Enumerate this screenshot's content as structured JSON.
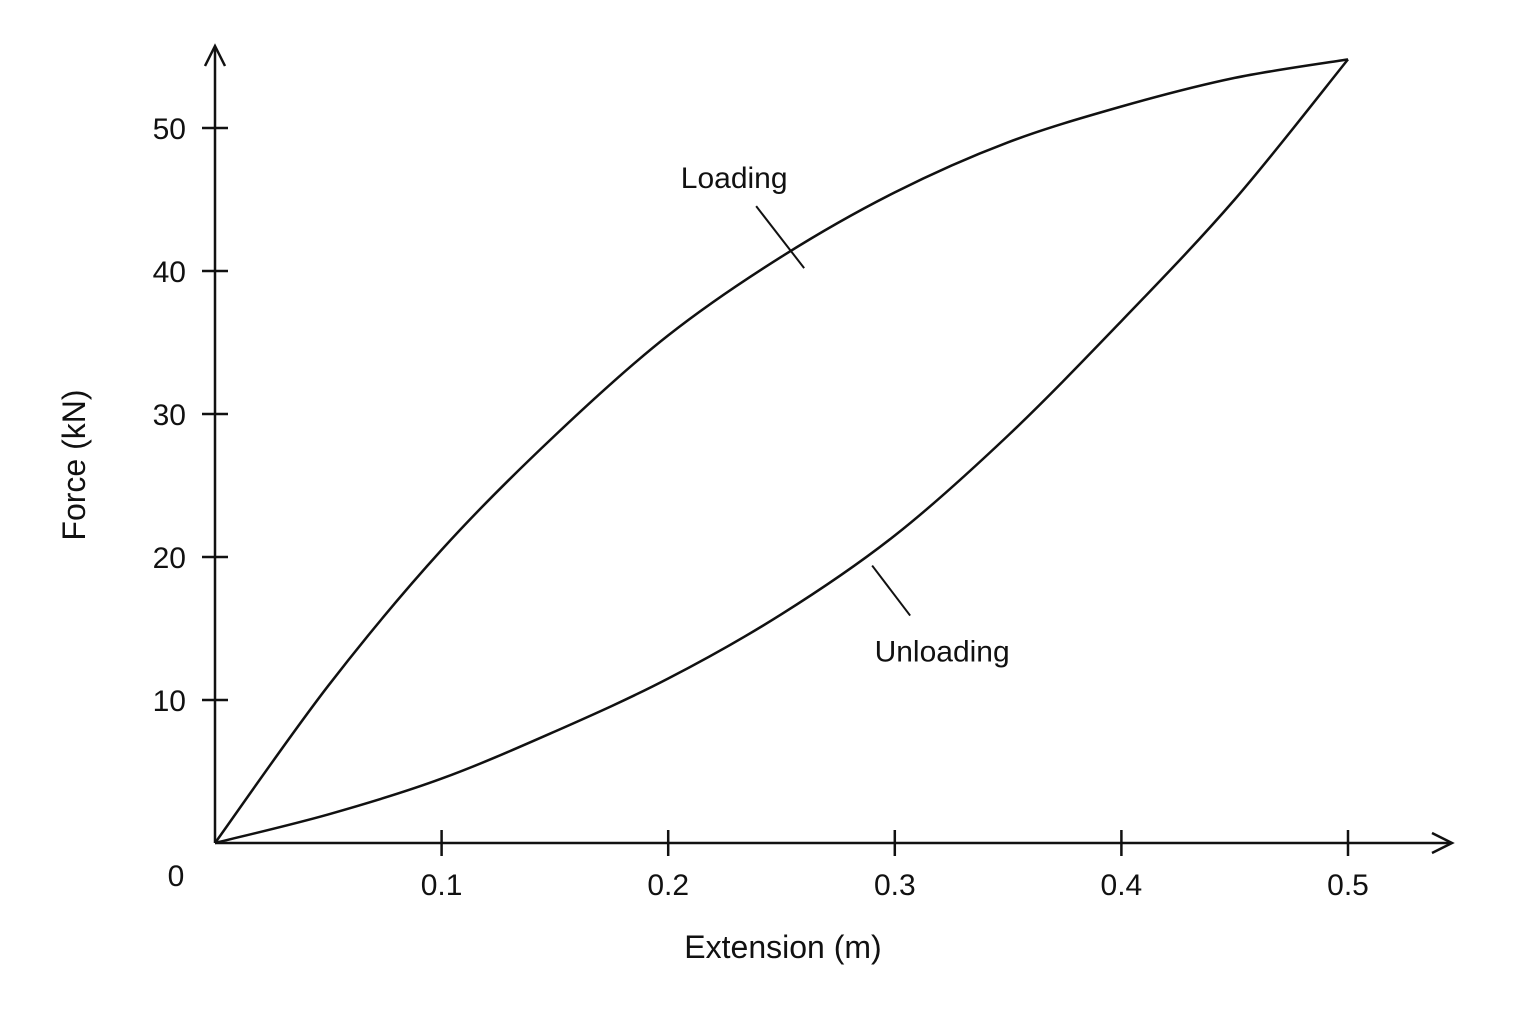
{
  "chart_data": {
    "type": "line",
    "title": "",
    "xlabel": "Extension (m)",
    "ylabel": "Force (kN)",
    "origin_label": "0",
    "xlim": [
      0,
      0.5
    ],
    "ylim": [
      0,
      50
    ],
    "x_ticks": [
      {
        "value": 0.1,
        "label": "0.1"
      },
      {
        "value": 0.2,
        "label": "0.2"
      },
      {
        "value": 0.3,
        "label": "0.3"
      },
      {
        "value": 0.4,
        "label": "0.4"
      },
      {
        "value": 0.5,
        "label": "0.5"
      }
    ],
    "y_ticks": [
      {
        "value": 10,
        "label": "10"
      },
      {
        "value": 20,
        "label": "20"
      },
      {
        "value": 30,
        "label": "30"
      },
      {
        "value": 40,
        "label": "40"
      },
      {
        "value": 50,
        "label": "50"
      }
    ],
    "grid": false,
    "legend": "none",
    "series": [
      {
        "key": "loading",
        "x": [
          0,
          0.05,
          0.1,
          0.15,
          0.2,
          0.25,
          0.3,
          0.35,
          0.4,
          0.45,
          0.5
        ],
        "y": [
          0,
          11.0,
          20.5,
          28.5,
          35.5,
          41.0,
          45.5,
          49.0,
          51.5,
          53.5,
          54.8
        ]
      },
      {
        "key": "unloading",
        "x": [
          0,
          0.05,
          0.1,
          0.15,
          0.2,
          0.25,
          0.3,
          0.35,
          0.4,
          0.45,
          0.5
        ],
        "y": [
          0,
          2.0,
          4.5,
          7.8,
          11.5,
          16.0,
          21.5,
          28.5,
          36.5,
          45.0,
          54.8
        ]
      }
    ],
    "annotations": [
      {
        "text": "Loading",
        "series": "loading",
        "x": 0.26,
        "y": 40.2
      },
      {
        "text": "Unloading",
        "series": "unloading",
        "x": 0.29,
        "y": 19.4
      }
    ]
  }
}
